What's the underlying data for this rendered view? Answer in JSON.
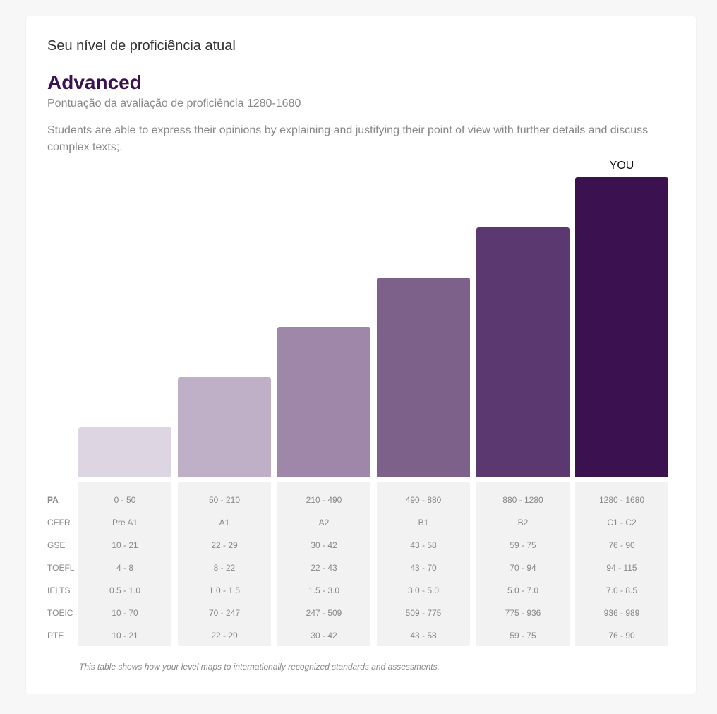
{
  "header": {
    "title": "Seu nível de proficiência atual",
    "level": "Advanced",
    "score_range": "Pontuação da avaliação de proficiência 1280-1680",
    "description": "Students are able to express their opinions by explaining and justifying their point of view with further details and discuss complex texts;."
  },
  "chart_data": {
    "type": "bar",
    "title": "",
    "categories": [
      "Pre A1",
      "A1",
      "A2",
      "B1",
      "B2",
      "C1 - C2"
    ],
    "values": [
      1,
      2,
      3,
      4,
      5,
      6
    ],
    "ylim": [
      0,
      6
    ],
    "colors": [
      "#ded5e3",
      "#bfb0c8",
      "#9e87a9",
      "#7d618b",
      "#5c3870",
      "#3b1150"
    ],
    "highlight_index": 5,
    "highlight_label": "YOU",
    "grid": false
  },
  "table": {
    "rows": [
      {
        "label": "PA",
        "bold": true,
        "values": [
          "0 - 50",
          "50 - 210",
          "210 - 490",
          "490 - 880",
          "880 - 1280",
          "1280 - 1680"
        ]
      },
      {
        "label": "CEFR",
        "bold": false,
        "values": [
          "Pre A1",
          "A1",
          "A2",
          "B1",
          "B2",
          "C1 - C2"
        ]
      },
      {
        "label": "GSE",
        "bold": false,
        "values": [
          "10 - 21",
          "22 - 29",
          "30 - 42",
          "43 - 58",
          "59 - 75",
          "76 - 90"
        ]
      },
      {
        "label": "TOEFL",
        "bold": false,
        "values": [
          "4 - 8",
          "8 - 22",
          "22 - 43",
          "43 - 70",
          "70 - 94",
          "94 - 115"
        ]
      },
      {
        "label": "IELTS",
        "bold": false,
        "values": [
          "0.5 - 1.0",
          "1.0 - 1.5",
          "1.5 - 3.0",
          "3.0 - 5.0",
          "5.0 - 7.0",
          "7.0 - 8.5"
        ]
      },
      {
        "label": "TOEIC",
        "bold": false,
        "values": [
          "10 - 70",
          "70 - 247",
          "247 - 509",
          "509 - 775",
          "775 - 936",
          "936 - 989"
        ]
      },
      {
        "label": "PTE",
        "bold": false,
        "values": [
          "10 - 21",
          "22 - 29",
          "30 - 42",
          "43 - 58",
          "59 - 75",
          "76 - 90"
        ]
      }
    ],
    "footnote": "This table shows how your level maps to internationally recognized standards and assessments."
  }
}
